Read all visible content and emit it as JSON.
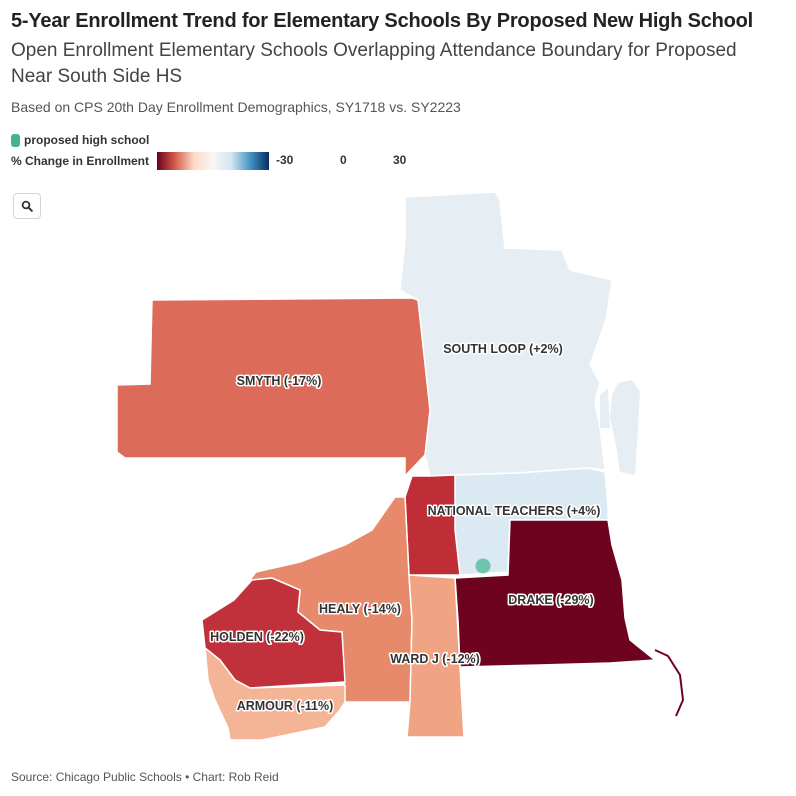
{
  "header": {
    "title": "5-Year Enrollment Trend for Elementary Schools By Proposed New High School",
    "subtitle": "Open Enrollment Elementary Schools Overlapping Attendance Boundary for Proposed Near South Side HS",
    "note": "Based on CPS 20th Day Enrollment Demographics, SY1718 vs. SY2223"
  },
  "legend": {
    "point_label": "proposed high school",
    "point_color": "#3fb68b",
    "scale_label": "% Change in Enrollment",
    "ticks": [
      "-30",
      "0",
      "30"
    ],
    "scale_colors": [
      "#67001f",
      "#d6604d",
      "#fddbc7",
      "#f7f7f7",
      "#d1e5f0",
      "#4393c3",
      "#053061"
    ]
  },
  "map": {
    "search_icon": "search-icon",
    "regions": [
      {
        "name": "SMYTH",
        "change": -17,
        "label": "SMYTH (-17%)",
        "color": "#dc6b59"
      },
      {
        "name": "SOUTH LOOP",
        "change": 2,
        "label": "SOUTH LOOP (+2%)",
        "color": "#e6eef3"
      },
      {
        "name": "NATIONAL TEACHERS",
        "change": 4,
        "label": "NATIONAL TEACHERS (+4%)",
        "color": "#dbe9f3"
      },
      {
        "name": "DRAKE",
        "change": -29,
        "label": "DRAKE (-29%)",
        "color": "#6e0320"
      },
      {
        "name": "HEALY",
        "change": -14,
        "label": "HEALY (-14%)",
        "color": "#e78a6c"
      },
      {
        "name": "HOLDEN",
        "change": -22,
        "label": "HOLDEN (-22%)",
        "color": "#c0313b"
      },
      {
        "name": "WARD J",
        "change": -12,
        "label": "WARD J (-12%)",
        "color": "#f0a484"
      },
      {
        "name": "ARMOUR",
        "change": -11,
        "label": "ARMOUR (-11%)",
        "color": "#f4b596"
      },
      {
        "name": "",
        "change": -22,
        "label": "",
        "color": "#bf2e37"
      }
    ]
  },
  "footer": {
    "source": "Source: Chicago Public Schools • Chart: Rob Reid"
  }
}
